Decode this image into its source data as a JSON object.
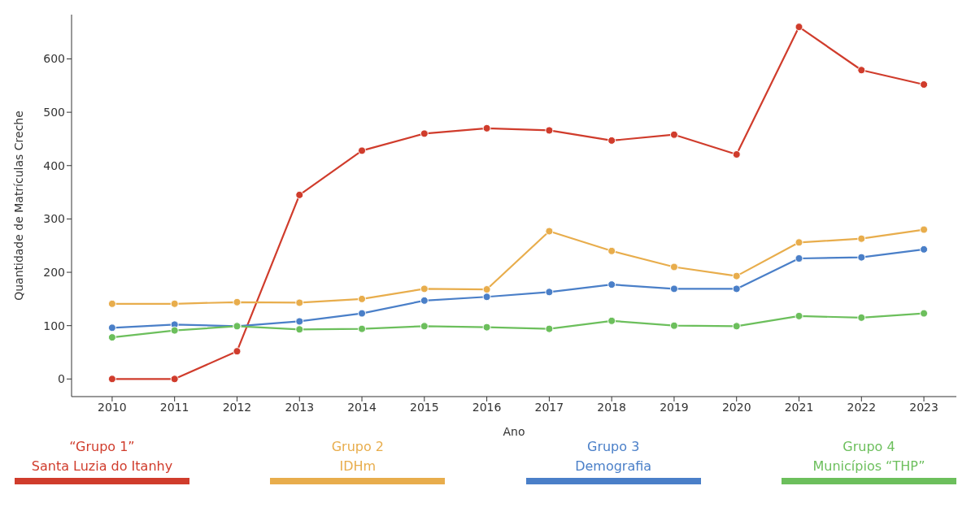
{
  "chart_data": {
    "type": "line",
    "xlabel": "Ano",
    "ylabel": "Quantidade de Matrículas Creche",
    "x": [
      2010,
      2011,
      2012,
      2013,
      2014,
      2015,
      2016,
      2017,
      2018,
      2019,
      2020,
      2021,
      2022,
      2023
    ],
    "xlim": [
      2009.35,
      2023.52
    ],
    "xticks": [
      2010,
      2011,
      2012,
      2013,
      2014,
      2015,
      2016,
      2017,
      2018,
      2019,
      2020,
      2021,
      2022,
      2023
    ],
    "ylim": [
      -33,
      683
    ],
    "yticks": [
      0,
      100,
      200,
      300,
      400,
      500,
      600
    ],
    "grid": false,
    "legend": "bottom",
    "marker": "circle",
    "line_style": "solid",
    "series": [
      {
        "name": "“Grupo 1”\nSanta Luzia do Itanhy",
        "color": "#d03c2c",
        "values": [
          0,
          0,
          52,
          345,
          428,
          460,
          470,
          466,
          447,
          458,
          421,
          660,
          579,
          552
        ]
      },
      {
        "name": "Grupo 2\nIDHm",
        "color": "#e8ad4c",
        "values": [
          141,
          141,
          144,
          143,
          150,
          169,
          168,
          277,
          240,
          210,
          193,
          256,
          263,
          280
        ]
      },
      {
        "name": "Grupo 3\nDemografia",
        "color": "#4a7fc8",
        "values": [
          96,
          102,
          99,
          108,
          123,
          147,
          154,
          163,
          177,
          169,
          169,
          226,
          228,
          243
        ]
      },
      {
        "name": "Grupo 4\nMunicípios “THP”",
        "color": "#6cbf5c",
        "values": [
          78,
          91,
          99,
          93,
          94,
          99,
          97,
          94,
          109,
          100,
          99,
          118,
          115,
          123
        ]
      }
    ]
  }
}
